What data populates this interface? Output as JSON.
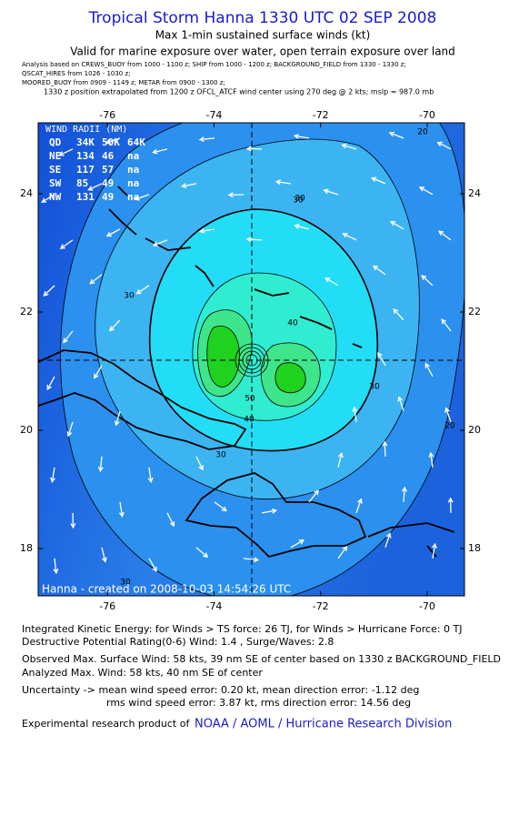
{
  "header": {
    "title": "Tropical Storm Hanna 1330 UTC 02 SEP 2008",
    "subtitle": "Max 1-min sustained surface winds (kt)",
    "validity": "Valid for marine exposure over water, open terrain exposure over land",
    "sources": [
      "Analysis based on  CREWS_BUOY from 1000 - 1100 z;  SHIP from 1000 - 1200 z;  BACKGROUND_FIELD from 1330 - 1330 z;",
      "QSCAT_HIRES from 1026 - 1030 z;",
      "MOORED_BUOY from 0909 - 1149 z;  METAR from 0900 - 1300 z;",
      "1330 z position extrapolated from 1200 z OFCL_ATCF wind center using 270 deg @ 2 kts; mslp = 987.0 mb"
    ]
  },
  "map": {
    "lonlim": [
      -77.3,
      -69.3
    ],
    "latlim": [
      17.2,
      25.2
    ],
    "lon_ticks": [
      -76,
      -74,
      -72,
      -70
    ],
    "lat_ticks": [
      18,
      20,
      22,
      24
    ],
    "credit": "Hanna - created on 2008-10-03 14:54:26 UTC",
    "contour_labels": [
      "20",
      "20",
      "30",
      "30",
      "30",
      "30",
      "30",
      "40",
      "40",
      "50",
      "30"
    ],
    "wind_radii": {
      "title": "WIND RADII (NM)",
      "header": [
        "QD",
        "34K",
        "50K",
        "64K"
      ],
      "rows": [
        [
          "NE",
          "134",
          "46",
          "na"
        ],
        [
          "SE",
          "117",
          "57",
          "na"
        ],
        [
          "SW",
          "85",
          "49",
          "na"
        ],
        [
          "NW",
          "131",
          "49",
          "na"
        ]
      ]
    }
  },
  "footer": {
    "lines": [
      "Integrated Kinetic Energy:  for Winds > TS force: 26 TJ,  for Winds > Hurricane Force: 0 TJ",
      "Destructive Potential Rating(0-6)   Wind: 1.4 , Surge/Waves: 2.8",
      "Observed Max. Surface Wind: 58 kts, 39 nm SE of center based on 1330 z BACKGROUND_FIELD",
      "Analyzed Max. Wind: 58 kts, 40 nm SE of center",
      "Uncertainty -> mean wind speed error: 0.20 kt,   mean direction error:  -1.12 deg",
      "rms wind speed error: 3.87 kt,   rms direction error: 14.56 deg"
    ],
    "credit_prefix": "Experimental research product of",
    "credit_link": "NOAA / AOML / Hurricane Research Division"
  }
}
